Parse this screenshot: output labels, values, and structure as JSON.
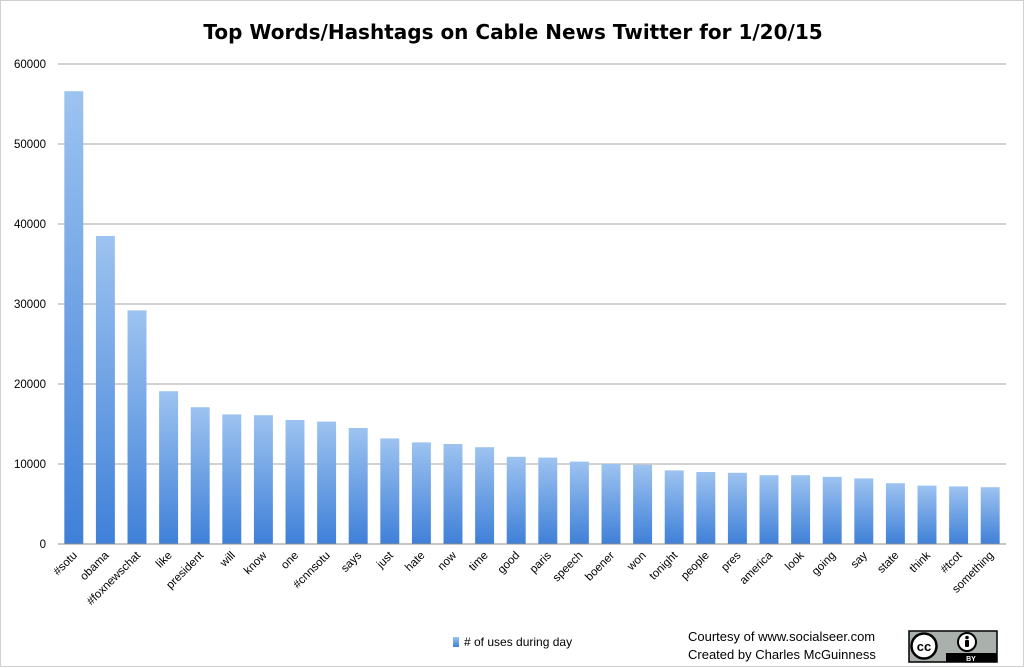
{
  "chart_data": {
    "type": "bar",
    "title": "Top Words/Hashtags on Cable News Twitter for 1/20/15",
    "xlabel": "",
    "ylabel": "",
    "ylim": [
      0,
      60000
    ],
    "yticks": [
      0,
      10000,
      20000,
      30000,
      40000,
      50000,
      60000
    ],
    "grid": true,
    "legend_position": "bottom",
    "categories": [
      "#sotu",
      "obama",
      "#foxnewschat",
      "like",
      "president",
      "will",
      "know",
      "one",
      "#cnnsotu",
      "says",
      "just",
      "hate",
      "now",
      "time",
      "good",
      "paris",
      "speech",
      "boener",
      "won",
      "tonight",
      "people",
      "pres",
      "america",
      "look",
      "going",
      "say",
      "state",
      "think",
      "#tcot",
      "something"
    ],
    "series": [
      {
        "name": "# of uses during day",
        "color": "#5b9bd5",
        "values": [
          56600,
          38500,
          29200,
          19100,
          17100,
          16200,
          16100,
          15500,
          15300,
          14500,
          13200,
          12700,
          12500,
          12100,
          10900,
          10800,
          10300,
          10000,
          9900,
          9200,
          9000,
          8900,
          8600,
          8600,
          8400,
          8200,
          7600,
          7300,
          7200,
          7100
        ]
      }
    ]
  },
  "credits": {
    "line1": "Courtesy of www.socialseer.com",
    "line2": "Created by Charles McGuinness"
  },
  "license_badge": {
    "cc_text": "cc",
    "by_text": "BY"
  }
}
